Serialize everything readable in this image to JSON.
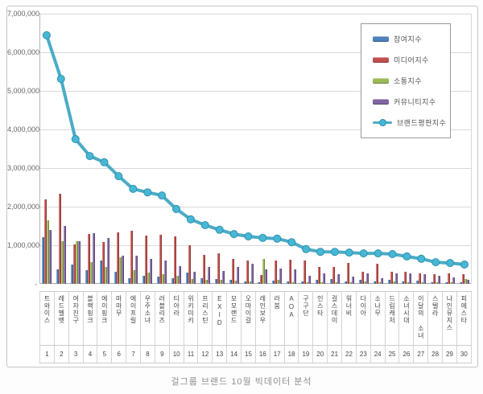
{
  "page": {
    "caption": "걸그룹 브랜드 10월 빅데이터 분석"
  },
  "chart_data": {
    "type": "combo-bar-line",
    "title": "걸그룹 브랜드 10월 빅데이터 분석",
    "xlabel": "",
    "ylabel": "",
    "grid": true,
    "legend_position": "top-right",
    "y_axis": {
      "min": 0,
      "max": 7000000,
      "step": 1000000,
      "tick_labels": [
        "7,000,000",
        "6,000,000",
        "5,000,000",
        "4,000,000",
        "3,000,000",
        "2,000,000",
        "1,000,000",
        "-"
      ]
    },
    "categories": [
      "트와이스",
      "레드벨벳",
      "여자친구",
      "블랙핑크",
      "에이핑크",
      "마마무",
      "에이프릴",
      "우주소녀",
      "러블리즈",
      "티아라",
      "위키미키",
      "프리스틴",
      "EXID",
      "모모랜드",
      "오마이걸",
      "레인보우",
      "라붐",
      "AOA",
      "구구단",
      "인스타",
      "걸스데이",
      "워너비",
      "다이아",
      "소나무",
      "드림캐처",
      "소녀시대",
      "이달의 소녀",
      "스텔라",
      "나인뮤지스",
      "피에스타"
    ],
    "ranks": [
      1,
      2,
      3,
      4,
      5,
      6,
      7,
      8,
      9,
      10,
      11,
      12,
      13,
      14,
      15,
      16,
      17,
      18,
      19,
      20,
      21,
      22,
      23,
      24,
      25,
      26,
      27,
      28,
      29,
      30
    ],
    "series": [
      {
        "name": "참여지수",
        "type": "bar",
        "color": "#4F81BD",
        "values": [
          1210000,
          380000,
          490000,
          350000,
          600000,
          310000,
          150000,
          200000,
          180000,
          150000,
          300000,
          150000,
          120000,
          100000,
          70000,
          50000,
          80000,
          60000,
          70000,
          100000,
          130000,
          70000,
          100000,
          60000,
          100000,
          60000,
          90000,
          50000,
          50000,
          40000
        ]
      },
      {
        "name": "미디어지수",
        "type": "bar",
        "color": "#C0504D",
        "values": [
          2190000,
          2340000,
          1020000,
          1290000,
          1080000,
          1340000,
          1380000,
          1250000,
          1280000,
          1220000,
          1000000,
          760000,
          790000,
          650000,
          610000,
          230000,
          600000,
          620000,
          600000,
          440000,
          440000,
          550000,
          310000,
          530000,
          310000,
          310000,
          270000,
          240000,
          270000,
          240000
        ]
      },
      {
        "name": "소통지수",
        "type": "bar",
        "color": "#9BBB59",
        "values": [
          1650000,
          1110000,
          1110000,
          560000,
          430000,
          690000,
          350000,
          300000,
          250000,
          200000,
          130000,
          100000,
          100000,
          80000,
          60000,
          650000,
          100000,
          40000,
          50000,
          50000,
          40000,
          40000,
          70000,
          50000,
          60000,
          40000,
          50000,
          40000,
          40000,
          130000
        ]
      },
      {
        "name": "커뮤니티지수",
        "type": "bar",
        "color": "#8064A2",
        "values": [
          1390000,
          1510000,
          1110000,
          1310000,
          1180000,
          730000,
          720000,
          650000,
          600000,
          450000,
          310000,
          440000,
          340000,
          440000,
          530000,
          370000,
          400000,
          380000,
          200000,
          270000,
          250000,
          180000,
          270000,
          150000,
          270000,
          280000,
          240000,
          200000,
          160000,
          100000
        ]
      },
      {
        "name": "브랜드평판지수",
        "type": "line",
        "color": "#4BACC6",
        "marker_color": "#46B8D6",
        "values": [
          6440000,
          5310000,
          3750000,
          3310000,
          3150000,
          2790000,
          2460000,
          2370000,
          2290000,
          1940000,
          1670000,
          1520000,
          1400000,
          1290000,
          1230000,
          1190000,
          1170000,
          1080000,
          900000,
          830000,
          830000,
          810000,
          790000,
          790000,
          770000,
          710000,
          650000,
          560000,
          540000,
          500000
        ]
      }
    ]
  }
}
